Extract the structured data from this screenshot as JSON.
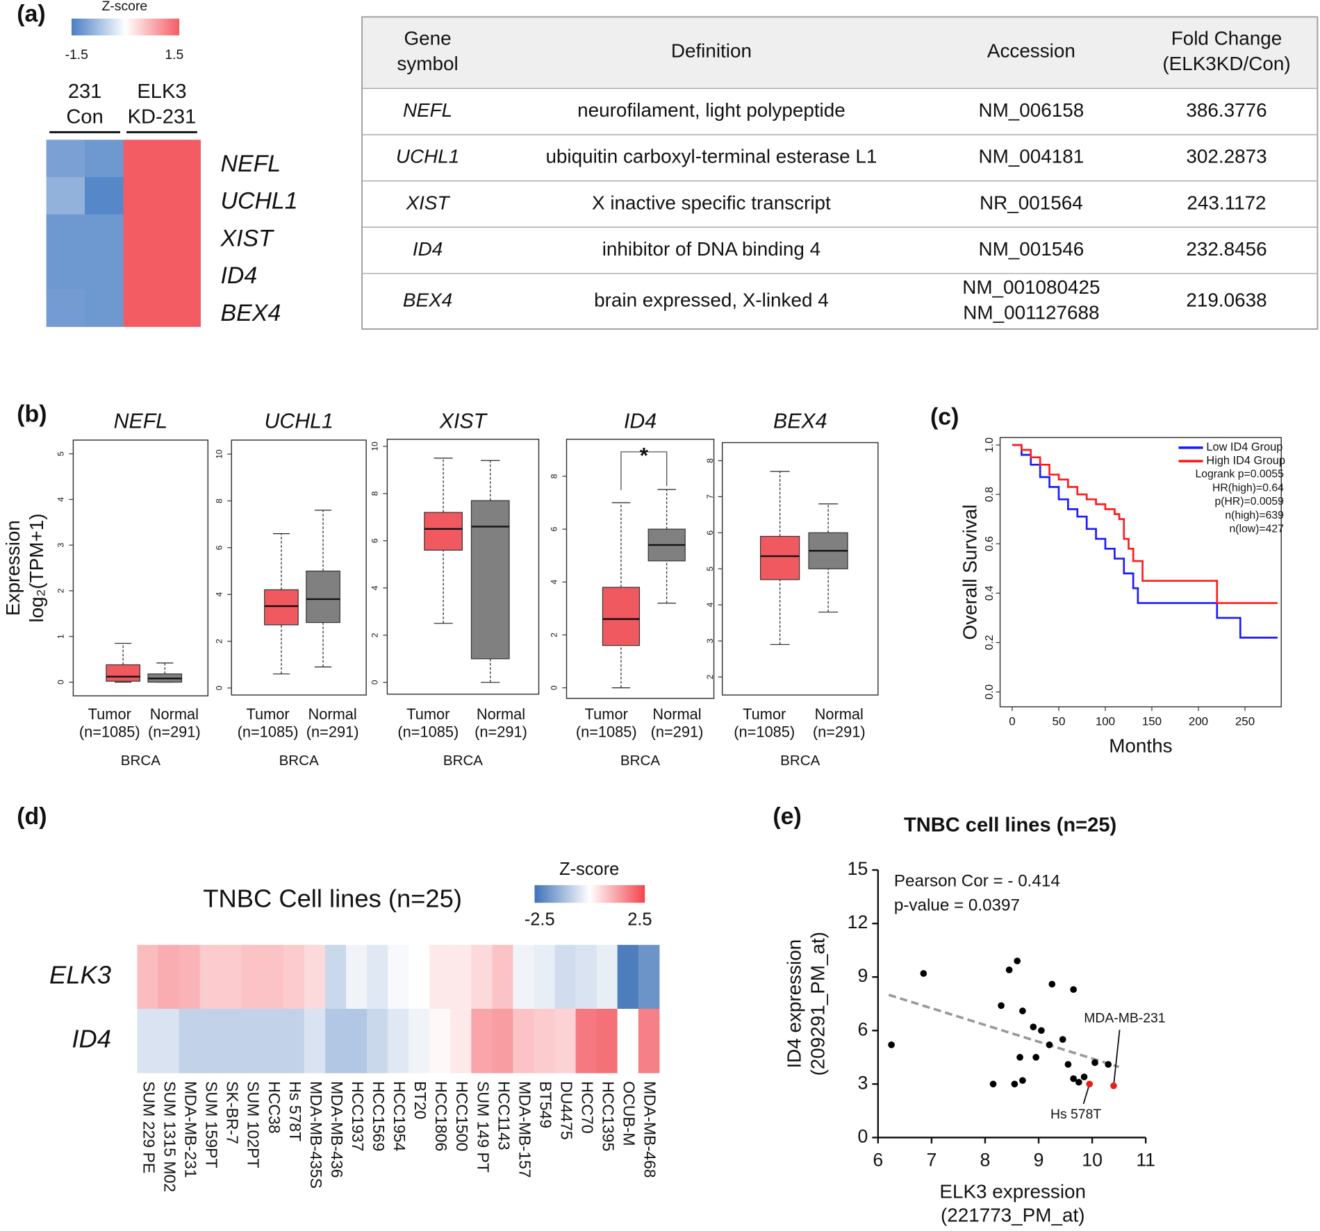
{
  "panel_labels": [
    "(a)",
    "(b)",
    "(c)",
    "(d)",
    "(e)"
  ],
  "table": {
    "header": [
      [
        "Gene",
        "symbol"
      ],
      [
        "Definition"
      ],
      [
        "Accession"
      ],
      [
        "Fold Change",
        "(ELK3KD/Con)"
      ]
    ],
    "rows": [
      [
        "NEFL",
        "neurofilament, light polypeptide",
        [
          "NM_006158"
        ],
        "386.3776"
      ],
      [
        "UCHL1",
        "ubiquitin carboxyl-terminal esterase L1",
        [
          "NM_004181"
        ],
        "302.2873"
      ],
      [
        "XIST",
        "X inactive specific transcript",
        [
          "NR_001564"
        ],
        "243.1172"
      ],
      [
        "ID4",
        "inhibitor of DNA binding 4",
        [
          "NM_001546"
        ],
        "232.8456"
      ],
      [
        "BEX4",
        "brain expressed, X-linked 4",
        [
          "NM_001080425",
          "NM_001127688"
        ],
        "219.0638"
      ]
    ]
  },
  "chart_data": [
    {
      "type": "heatmap",
      "legend_title": "Z-score",
      "clim": [
        -1.5,
        1.5
      ],
      "cticks": [
        -1.5,
        1.5
      ],
      "colors": [
        "#4a7ec4",
        "#ffffff",
        "#f45c64"
      ],
      "column_groups": [
        [
          "231",
          "Con"
        ],
        [
          "ELK3",
          "KD-231"
        ]
      ],
      "rows": [
        "NEFL",
        "UCHL1",
        "XIST",
        "ID4",
        "BEX4"
      ],
      "values": [
        [
          -1.1,
          -1.2,
          1.5,
          1.5
        ],
        [
          -0.9,
          -1.4,
          1.5,
          1.5
        ],
        [
          -1.2,
          -1.2,
          1.5,
          1.5
        ],
        [
          -1.2,
          -1.2,
          1.5,
          1.5
        ],
        [
          -1.15,
          -1.2,
          1.5,
          1.5
        ]
      ]
    },
    {
      "type": "box",
      "title": "NEFL",
      "ylabel": [
        "Expression",
        "log₂(TPM+1)"
      ],
      "categories": [
        [
          "Tumor",
          "(n=1085)"
        ],
        [
          "Normal",
          "(n=291)"
        ]
      ],
      "category_colors": [
        "#e02020",
        "#111111"
      ],
      "box_colors": [
        "#f0595f",
        "#808080"
      ],
      "xlabel": "BRCA",
      "ylim": [
        -0.3,
        5.3
      ],
      "yticks": [
        0,
        1,
        2,
        3,
        4,
        5
      ],
      "boxes": [
        {
          "low": 0,
          "q1": 0.02,
          "median": 0.12,
          "q3": 0.38,
          "high": 0.85
        },
        {
          "low": 0,
          "q1": 0.0,
          "median": 0.08,
          "q3": 0.18,
          "high": 0.42
        }
      ]
    },
    {
      "type": "box",
      "title": "UCHL1",
      "categories": [
        [
          "Tumor",
          "(n=1085)"
        ],
        [
          "Normal",
          "(n=291)"
        ]
      ],
      "category_colors": [
        "#e02020",
        "#111111"
      ],
      "box_colors": [
        "#f0595f",
        "#808080"
      ],
      "xlabel": "BRCA",
      "ylim": [
        -0.3,
        10.6
      ],
      "yticks": [
        0,
        2,
        4,
        6,
        8,
        10
      ],
      "boxes": [
        {
          "low": 0.6,
          "q1": 2.7,
          "median": 3.5,
          "q3": 4.2,
          "high": 6.6
        },
        {
          "low": 0.9,
          "q1": 2.8,
          "median": 3.8,
          "q3": 5.0,
          "high": 7.6
        }
      ]
    },
    {
      "type": "box",
      "title": "XIST",
      "categories": [
        [
          "Tumor",
          "(n=1085)"
        ],
        [
          "Normal",
          "(n=291)"
        ]
      ],
      "category_colors": [
        "#e02020",
        "#111111"
      ],
      "box_colors": [
        "#f0595f",
        "#808080"
      ],
      "xlabel": "BRCA",
      "ylim": [
        -0.5,
        10.3
      ],
      "yticks": [
        0,
        2,
        4,
        6,
        8,
        10
      ],
      "boxes": [
        {
          "low": 2.5,
          "q1": 5.6,
          "median": 6.5,
          "q3": 7.2,
          "high": 9.5
        },
        {
          "low": 0,
          "q1": 1.0,
          "median": 6.6,
          "q3": 7.7,
          "high": 9.4
        }
      ]
    },
    {
      "type": "box",
      "title": "ID4",
      "annotation": "*",
      "categories": [
        [
          "Tumor",
          "(n=1085)"
        ],
        [
          "Normal",
          "(n=291)"
        ]
      ],
      "category_colors": [
        "#e02020",
        "#111111"
      ],
      "box_colors": [
        "#f0595f",
        "#808080"
      ],
      "xlabel": "BRCA",
      "ylim": [
        -0.4,
        9.4
      ],
      "yticks": [
        0,
        2,
        4,
        6,
        8
      ],
      "boxes": [
        {
          "low": 0,
          "q1": 1.6,
          "median": 2.6,
          "q3": 3.8,
          "high": 7.0
        },
        {
          "low": 3.2,
          "q1": 4.8,
          "median": 5.4,
          "q3": 6.0,
          "high": 7.5
        }
      ]
    },
    {
      "type": "box",
      "title": "BEX4",
      "categories": [
        [
          "Tumor",
          "(n=1085)"
        ],
        [
          "Normal",
          "(n=291)"
        ]
      ],
      "category_colors": [
        "#e02020",
        "#111111"
      ],
      "box_colors": [
        "#f0595f",
        "#808080"
      ],
      "xlabel": "BRCA",
      "ylim": [
        1.5,
        8.5
      ],
      "yticks": [
        2,
        3,
        4,
        5,
        6,
        7,
        8
      ],
      "boxes": [
        {
          "low": 2.9,
          "q1": 4.7,
          "median": 5.35,
          "q3": 5.9,
          "high": 7.7
        },
        {
          "low": 3.8,
          "q1": 5.0,
          "median": 5.5,
          "q3": 6.0,
          "high": 6.8
        }
      ]
    },
    {
      "type": "line",
      "step": true,
      "xlabel": "Months",
      "ylabel": "Overall Survival",
      "xlim": [
        -13,
        289
      ],
      "ylim": [
        -0.06,
        1.03
      ],
      "xticks": [
        0,
        50,
        100,
        150,
        200,
        250
      ],
      "yticks": [
        {
          "value": 0,
          "label": "0.0"
        },
        0.2,
        0.4,
        0.6,
        0.8,
        {
          "value": 1,
          "label": "1.0"
        }
      ],
      "series": [
        {
          "name": "Low ID4 Group",
          "color": "#1a1aff",
          "x": [
            0,
            10,
            20,
            30,
            40,
            50,
            60,
            70,
            80,
            90,
            100,
            110,
            120,
            130,
            135,
            220,
            245,
            285
          ],
          "values": [
            1,
            0.96,
            0.92,
            0.87,
            0.83,
            0.78,
            0.74,
            0.71,
            0.66,
            0.62,
            0.58,
            0.54,
            0.48,
            0.42,
            0.36,
            0.3,
            0.22,
            0.22
          ]
        },
        {
          "name": "High ID4 Group",
          "color": "#ff1a1a",
          "x": [
            0,
            10,
            20,
            30,
            40,
            50,
            60,
            70,
            80,
            90,
            100,
            110,
            115,
            120,
            125,
            130,
            140,
            220,
            285
          ],
          "values": [
            1,
            0.98,
            0.95,
            0.92,
            0.88,
            0.86,
            0.83,
            0.8,
            0.78,
            0.76,
            0.74,
            0.72,
            0.7,
            0.62,
            0.58,
            0.53,
            0.45,
            0.36,
            0.36
          ]
        }
      ],
      "stats": [
        "Logrank p=0.0055",
        "HR(high)=0.64",
        "p(HR)=0.0059",
        "n(high)=639",
        "n(low)=427"
      ]
    },
    {
      "type": "heatmap",
      "title": "TNBC Cell lines (n=25)",
      "legend_title": "Z-score",
      "clim": [
        -2.5,
        2.5
      ],
      "cticks": [
        -2.5,
        2.5
      ],
      "colors": [
        "#3f72b8",
        "#ffffff",
        "#f2444e"
      ],
      "rows": [
        "ELK3",
        "ID4"
      ],
      "columns": [
        "SUM 229 PE",
        "SUM 1315 M02",
        "MDA-MB-231",
        "SUM 159PT",
        "SK-BR-7",
        "SUM 102PT",
        "HCC38",
        "Hs 578T",
        "MDA-MB-435S",
        "MDA-MB-436",
        "HCC1937",
        "HCC1569",
        "HCC1954",
        "BT20",
        "HCC1806",
        "HCC1500",
        "SUM 149 PT",
        "HCC1143",
        "MDA-MB-157",
        "BT549",
        "DU4475",
        "HCC70",
        "HCC1395",
        "OCUB-M",
        "MDA-MB-468"
      ],
      "values": [
        [
          0.9,
          1.1,
          1.0,
          0.7,
          0.7,
          0.8,
          0.8,
          0.7,
          0.5,
          -0.7,
          -0.2,
          -0.4,
          -0.1,
          0.0,
          0.3,
          0.3,
          0.5,
          0.8,
          -0.2,
          -0.3,
          -0.6,
          -0.5,
          -0.3,
          -2.3,
          -1.9
        ],
        [
          -0.5,
          -0.5,
          -0.8,
          -0.8,
          -0.8,
          -0.8,
          -0.8,
          -0.8,
          -0.5,
          -1.0,
          -1.0,
          -0.7,
          -0.4,
          -0.2,
          0.1,
          0.3,
          1.2,
          1.3,
          0.8,
          0.7,
          0.6,
          1.8,
          1.9,
          0.0,
          1.7
        ]
      ]
    },
    {
      "type": "scatter",
      "title": "TNBC cell lines (n=25)",
      "annotations": [
        "Pearson Cor = - 0.414",
        "p-value = 0.0397"
      ],
      "xlabel": [
        "ELK3 expression",
        "(221773_PM_at)"
      ],
      "ylabel": [
        "ID4 expression",
        "(209291_PM_at)"
      ],
      "xlim": [
        6,
        11
      ],
      "ylim": [
        0,
        15
      ],
      "xticks": [
        6,
        7,
        8,
        9,
        10,
        11
      ],
      "yticks": [
        0,
        3,
        6,
        9,
        12,
        15
      ],
      "color": "#000000",
      "x": [
        6.25,
        6.85,
        8.15,
        8.3,
        8.45,
        8.6,
        8.55,
        8.7,
        8.7,
        8.65,
        8.9,
        8.95,
        9.05,
        9.2,
        9.25,
        9.55,
        9.65,
        9.65,
        9.75,
        9.85,
        10.05,
        10.3,
        9.45
      ],
      "values": [
        5.2,
        9.2,
        3.0,
        7.4,
        9.4,
        9.9,
        3.0,
        7.1,
        3.2,
        4.5,
        6.2,
        4.5,
        6.0,
        5.2,
        8.6,
        4.1,
        8.3,
        3.3,
        3.1,
        3.4,
        4.2,
        4.1,
        5.5
      ],
      "highlight_color": "#e8201c",
      "labeled_points": [
        {
          "label": "MDA-MB-231",
          "x": 10.4,
          "y": 2.9
        },
        {
          "label": "Hs 578T",
          "x": 9.95,
          "y": 3.0
        }
      ],
      "fit": {
        "x": [
          6.2,
          10.5
        ],
        "values": [
          8.0,
          3.96
        ]
      }
    }
  ]
}
